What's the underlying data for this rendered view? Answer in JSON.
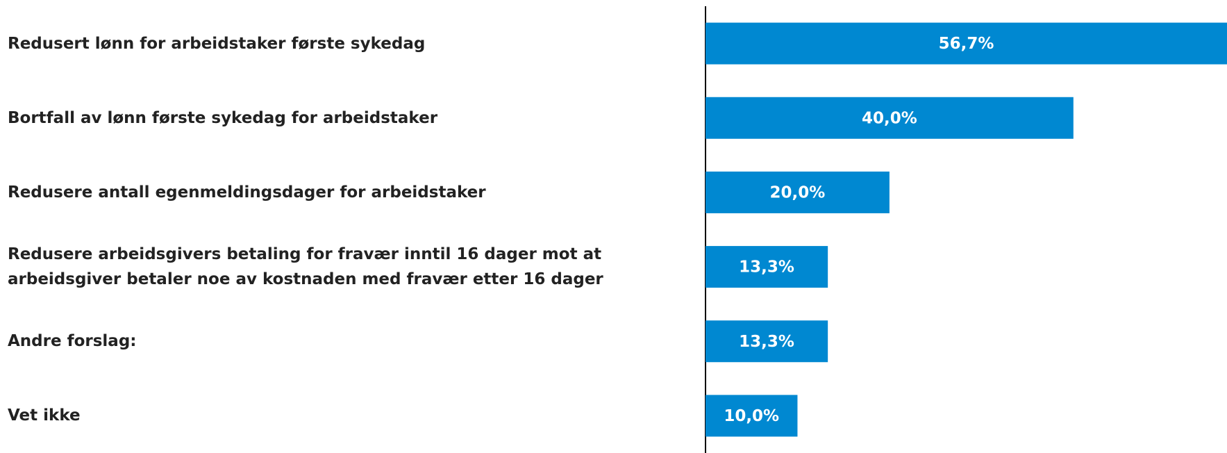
{
  "chart_data": {
    "type": "barh",
    "categories": [
      "Redusert lønn for arbeidstaker første sykedag",
      "Bortfall av lønn første sykedag for arbeidstaker",
      "Redusere antall egenmeldingsdager for arbeidstaker",
      "Redusere arbeidsgivers betaling for fravær inntil 16 dager mot at arbeidsgiver betaler noe av kostnaden med fravær etter 16 dager",
      "Andre forslag:",
      "Vet ikke"
    ],
    "values": [
      56.7,
      40.0,
      20.0,
      13.3,
      13.3,
      10.0
    ],
    "value_labels": [
      "56,7%",
      "40,0%",
      "20,0%",
      "13,3%",
      "13,3%",
      "10,0%"
    ],
    "color": "#0088d1",
    "xlim": [
      0,
      56.7
    ]
  }
}
